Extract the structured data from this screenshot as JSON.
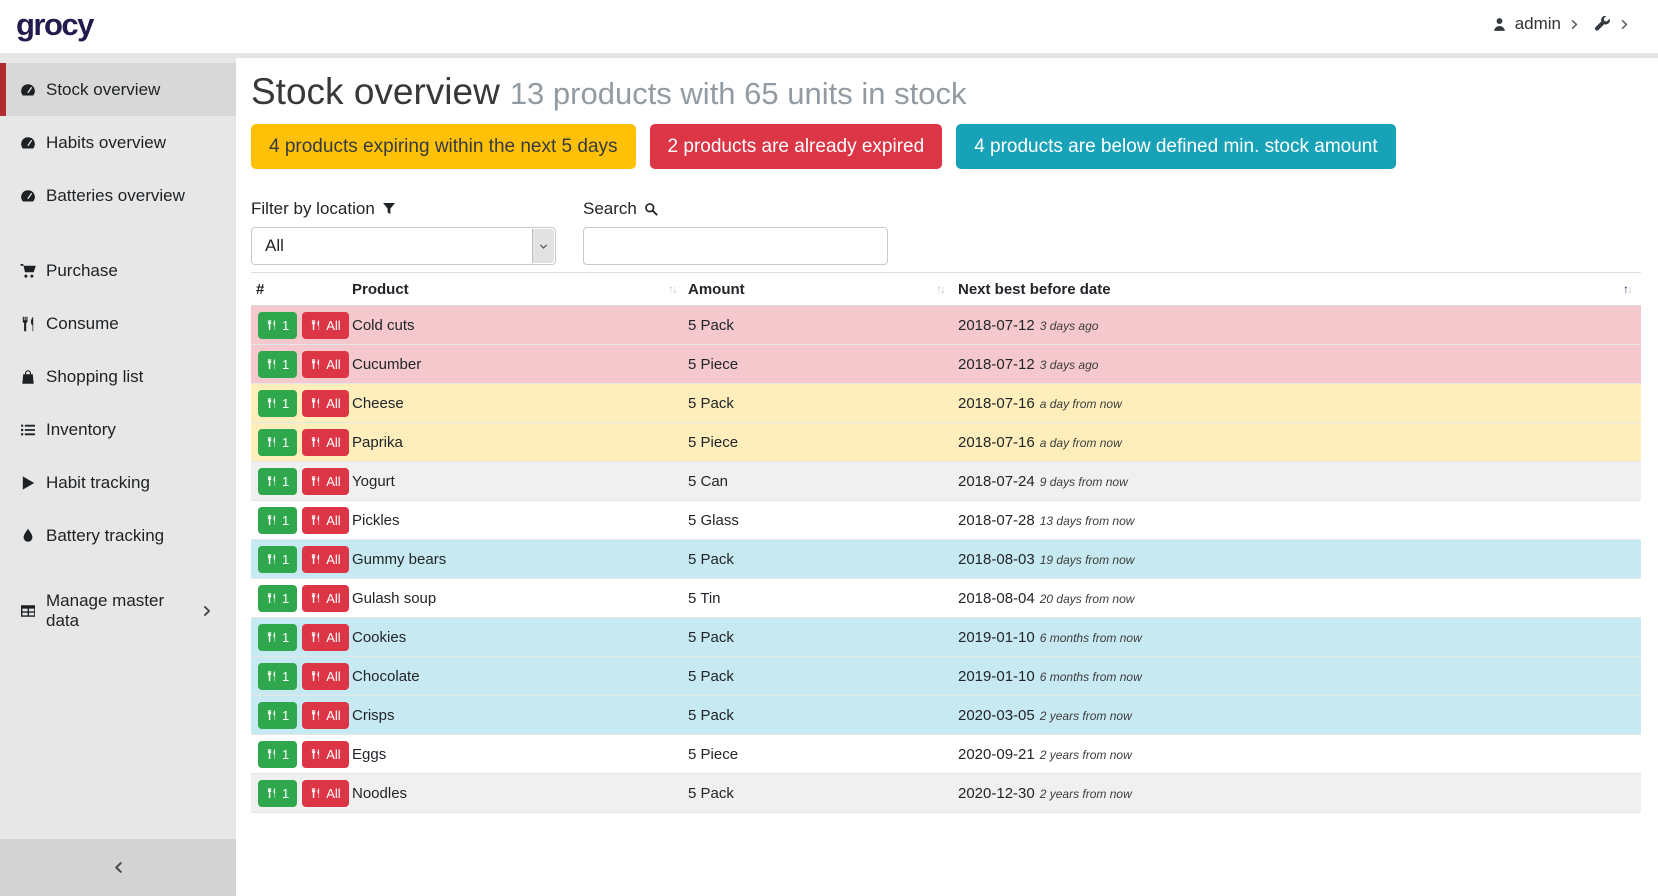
{
  "navbar": {
    "logo": "grocy",
    "user_label": "admin",
    "user_icon": "user-icon",
    "settings_icon": "wrench-icon"
  },
  "sidebar": {
    "groups": [
      {
        "items": [
          {
            "label": "Stock overview",
            "icon": "tachometer-icon",
            "active": true
          },
          {
            "label": "Habits overview",
            "icon": "tachometer-icon"
          },
          {
            "label": "Batteries overview",
            "icon": "tachometer-icon"
          }
        ]
      },
      {
        "items": [
          {
            "label": "Purchase",
            "icon": "shopping-cart-icon"
          },
          {
            "label": "Consume",
            "icon": "utensils-icon"
          },
          {
            "label": "Shopping list",
            "icon": "shopping-bag-icon"
          },
          {
            "label": "Inventory",
            "icon": "list-icon"
          },
          {
            "label": "Habit tracking",
            "icon": "play-icon"
          },
          {
            "label": "Battery tracking",
            "icon": "tint-icon"
          }
        ]
      },
      {
        "items": [
          {
            "label": "Manage master data",
            "icon": "table-icon",
            "chevron": true
          }
        ]
      }
    ],
    "collapse_icon": "chevron-left-icon"
  },
  "page": {
    "title": "Stock overview",
    "subtitle": "13 products with 65 units in stock",
    "alerts": [
      {
        "type": "warning",
        "text": "4 products expiring within the next 5 days"
      },
      {
        "type": "danger",
        "text": "2 products are already expired"
      },
      {
        "type": "info",
        "text": "4 products are below defined min. stock amount"
      }
    ],
    "filter": {
      "label": "Filter by location",
      "icon": "filter-icon",
      "value": "All"
    },
    "search": {
      "label": "Search",
      "icon": "search-icon",
      "value": ""
    }
  },
  "table": {
    "columns": [
      "#",
      "Product",
      "Amount",
      "Next best before date"
    ],
    "sort_column": "Next best before date",
    "sort_direction": "asc",
    "consume_one_label": "1",
    "consume_all_label": "All",
    "consume_icon": "utensils-icon",
    "rows": [
      {
        "product": "Cold cuts",
        "amount": "5 Pack",
        "date": "2018-07-12",
        "ago": "3 days ago",
        "state": "danger"
      },
      {
        "product": "Cucumber",
        "amount": "5 Piece",
        "date": "2018-07-12",
        "ago": "3 days ago",
        "state": "danger"
      },
      {
        "product": "Cheese",
        "amount": "5 Pack",
        "date": "2018-07-16",
        "ago": "a day from now",
        "state": "warning"
      },
      {
        "product": "Paprika",
        "amount": "5 Piece",
        "date": "2018-07-16",
        "ago": "a day from now",
        "state": "warning"
      },
      {
        "product": "Yogurt",
        "amount": "5 Can",
        "date": "2018-07-24",
        "ago": "9 days from now",
        "state": ""
      },
      {
        "product": "Pickles",
        "amount": "5 Glass",
        "date": "2018-07-28",
        "ago": "13 days from now",
        "state": ""
      },
      {
        "product": "Gummy bears",
        "amount": "5 Pack",
        "date": "2018-08-03",
        "ago": "19 days from now",
        "state": "info"
      },
      {
        "product": "Gulash soup",
        "amount": "5 Tin",
        "date": "2018-08-04",
        "ago": "20 days from now",
        "state": ""
      },
      {
        "product": "Cookies",
        "amount": "5 Pack",
        "date": "2019-01-10",
        "ago": "6 months from now",
        "state": "info"
      },
      {
        "product": "Chocolate",
        "amount": "5 Pack",
        "date": "2019-01-10",
        "ago": "6 months from now",
        "state": "info"
      },
      {
        "product": "Crisps",
        "amount": "5 Pack",
        "date": "2020-03-05",
        "ago": "2 years from now",
        "state": "info"
      },
      {
        "product": "Eggs",
        "amount": "5 Piece",
        "date": "2020-09-21",
        "ago": "2 years from now",
        "state": ""
      },
      {
        "product": "Noodles",
        "amount": "5 Pack",
        "date": "2020-12-30",
        "ago": "2 years from now",
        "state": ""
      }
    ]
  },
  "colors": {
    "logo": "#221c4e",
    "warning": "#ffc107",
    "danger": "#dc3545",
    "info": "#17a2b8",
    "success": "#2fa74c",
    "active_border": "#b02c31",
    "row_danger": "#f4c8cd",
    "row_warning": "#fdeebb",
    "row_info": "#c7e9f1"
  }
}
